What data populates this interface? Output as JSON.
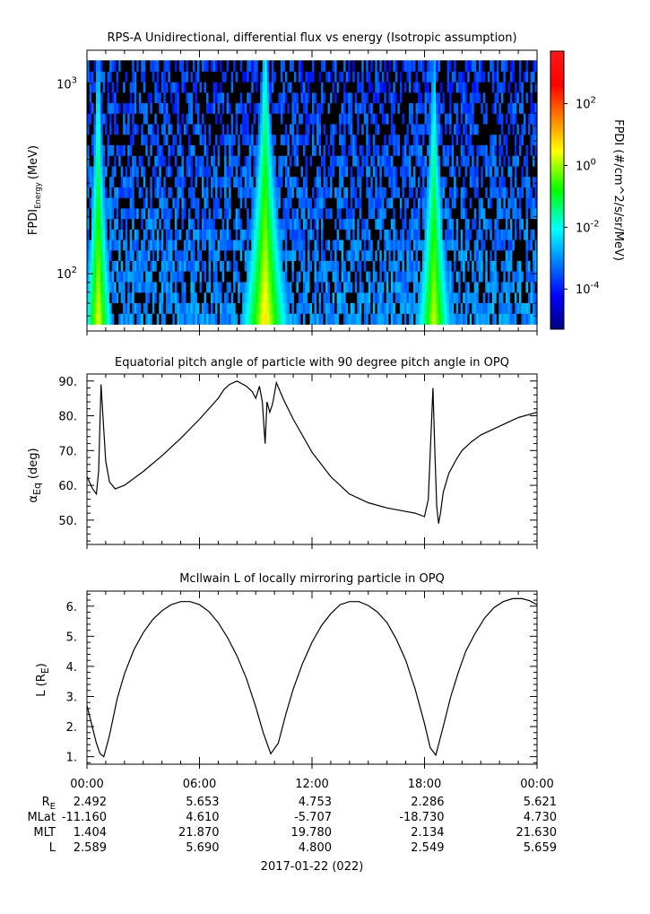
{
  "chart_data": [
    {
      "type": "heatmap",
      "title": "RPS-A Unidirectional, differential flux vs energy (Isotropic assumption)",
      "ylabel_main": "FPDI",
      "ylabel_sub": "Energy",
      "ylabel_unit": "(MeV)",
      "yscale": "log",
      "ylim": [
        50,
        1500
      ],
      "y_ticks": [
        {
          "value": 100,
          "base": "10",
          "exp": "2"
        },
        {
          "value": 1000,
          "base": "10",
          "exp": "3"
        }
      ],
      "energy_channels": [
        58,
        66,
        75,
        85,
        97,
        110,
        125,
        142,
        161,
        183,
        208,
        236,
        268,
        305,
        346,
        393,
        447,
        508,
        577,
        655,
        744,
        845,
        960,
        1090,
        1240
      ],
      "colorbar": {
        "label": "FPDI (#/cm^2/s/sr/MeV)",
        "scale": "log",
        "range_exp": [
          -5.3,
          3.7
        ],
        "ticks": [
          {
            "base": "10",
            "exp": "2",
            "value": 2
          },
          {
            "base": "10",
            "exp": "0",
            "value": 0
          },
          {
            "base": "10",
            "exp": "-2",
            "value": -2
          },
          {
            "base": "10",
            "exp": "-4",
            "value": -4
          }
        ],
        "colormap": "rainbow"
      },
      "peaks": [
        {
          "hour": 0.6,
          "peak_log_flux": 0.5,
          "half_width_h": 0.35
        },
        {
          "hour": 9.5,
          "peak_log_flux": 0.8,
          "half_width_h": 0.55
        },
        {
          "hour": 18.5,
          "peak_log_flux": 0.3,
          "half_width_h": 0.45
        }
      ]
    },
    {
      "type": "line",
      "title": "Equatorial pitch angle of particle with 90 degree pitch angle in OPQ",
      "ylabel_main": "α",
      "ylabel_sub": "Eq",
      "ylabel_unit": "(deg)",
      "ylim": [
        43,
        92
      ],
      "y_ticks": [
        50,
        60,
        70,
        80,
        90
      ],
      "y_tick_labels": [
        "50.",
        "60.",
        "70.",
        "80.",
        "90."
      ],
      "x_hours": [
        0,
        0.3,
        0.5,
        0.62,
        0.75,
        0.85,
        1.0,
        1.2,
        1.5,
        2.0,
        3.0,
        4.0,
        5.0,
        6.0,
        7.0,
        7.3,
        7.6,
        8.0,
        8.5,
        8.8,
        9.0,
        9.2,
        9.35,
        9.5,
        9.6,
        9.75,
        9.9,
        10.1,
        10.3,
        10.5,
        11.0,
        12.0,
        13.0,
        14.0,
        15.0,
        16.0,
        17.0,
        17.5,
        18.0,
        18.2,
        18.35,
        18.45,
        18.55,
        18.65,
        18.75,
        18.85,
        19.0,
        19.3,
        19.7,
        20.0,
        20.5,
        21.0,
        22.0,
        23.0,
        24.0
      ],
      "y_values": [
        62.5,
        59.0,
        57.5,
        64.0,
        89.0,
        80.0,
        67.0,
        61.0,
        59.0,
        60.0,
        64.0,
        68.5,
        73.5,
        79.0,
        85.0,
        87.5,
        89.0,
        90.0,
        88.5,
        87.0,
        85.0,
        88.5,
        84.0,
        72.0,
        84.0,
        81.0,
        83.5,
        89.5,
        87.0,
        84.5,
        79.0,
        69.5,
        62.5,
        57.5,
        55.0,
        53.5,
        52.5,
        52.0,
        51.0,
        56.0,
        75.0,
        88.0,
        70.0,
        54.0,
        49.0,
        52.0,
        58.0,
        63.5,
        67.5,
        70.0,
        72.5,
        74.5,
        77.0,
        79.5,
        81.0
      ]
    },
    {
      "type": "line",
      "title": "McIlwain L of locally mirroring particle in OPQ",
      "ylabel_main": "L (R",
      "ylabel_sub": "E",
      "ylabel_unit": ")",
      "ylim": [
        0.75,
        6.5
      ],
      "y_ticks": [
        1,
        2,
        3,
        4,
        5,
        6
      ],
      "y_tick_labels": [
        "1.",
        "2.",
        "3.",
        "4.",
        "5.",
        "6."
      ],
      "x_hours": [
        0,
        0.3,
        0.5,
        0.7,
        0.9,
        1.2,
        1.6,
        2.0,
        2.5,
        3.0,
        3.5,
        4.0,
        4.5,
        5.0,
        5.5,
        6.0,
        6.5,
        7.0,
        7.5,
        8.0,
        8.5,
        9.0,
        9.4,
        9.8,
        10.2,
        10.6,
        11.0,
        11.5,
        12.0,
        12.5,
        13.0,
        13.5,
        14.0,
        14.5,
        15.0,
        15.5,
        16.0,
        16.5,
        17.0,
        17.5,
        18.0,
        18.3,
        18.6,
        19.0,
        19.4,
        19.8,
        20.2,
        20.7,
        21.2,
        21.7,
        22.2,
        22.7,
        23.2,
        23.6,
        24.0
      ],
      "y_values": [
        2.7,
        1.95,
        1.45,
        1.1,
        1.0,
        1.7,
        2.9,
        3.75,
        4.55,
        5.12,
        5.55,
        5.85,
        6.05,
        6.15,
        6.15,
        6.05,
        5.82,
        5.45,
        4.95,
        4.35,
        3.6,
        2.65,
        1.8,
        1.1,
        1.45,
        2.4,
        3.25,
        4.1,
        4.8,
        5.35,
        5.75,
        6.05,
        6.15,
        6.15,
        6.02,
        5.8,
        5.45,
        4.9,
        4.2,
        3.25,
        2.1,
        1.3,
        1.05,
        2.0,
        3.0,
        3.8,
        4.5,
        5.1,
        5.6,
        5.95,
        6.15,
        6.25,
        6.25,
        6.18,
        6.05
      ]
    }
  ],
  "time_axis": {
    "range_hours": [
      0,
      24
    ],
    "ticks": [
      {
        "hour": 0,
        "label": "00:00"
      },
      {
        "hour": 6,
        "label": "06:00"
      },
      {
        "hour": 12,
        "label": "12:00"
      },
      {
        "hour": 18,
        "label": "18:00"
      },
      {
        "hour": 24,
        "label": "00:00"
      }
    ],
    "date_label": "2017-01-22 (022)"
  },
  "ephemeris": {
    "rows": [
      {
        "label_main": "R",
        "label_sub": "E",
        "values": [
          "2.492",
          "5.653",
          "4.753",
          "2.286",
          "5.621"
        ]
      },
      {
        "label_main": "MLat",
        "label_sub": "",
        "values": [
          "-11.160",
          "4.610",
          "-5.707",
          "-18.730",
          "4.730"
        ]
      },
      {
        "label_main": "MLT",
        "label_sub": "",
        "values": [
          "1.404",
          "21.870",
          "19.780",
          "2.134",
          "21.630"
        ]
      },
      {
        "label_main": "L",
        "label_sub": "",
        "values": [
          "2.589",
          "5.690",
          "4.800",
          "2.549",
          "5.659"
        ]
      }
    ]
  }
}
